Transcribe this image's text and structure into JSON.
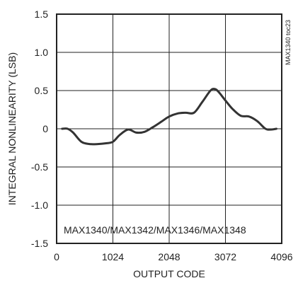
{
  "chart_data": {
    "type": "line",
    "xlabel": "OUTPUT CODE",
    "ylabel": "INTEGRAL NONLINEARITY (LSB)",
    "annotation": "MAX1340/MAX1342/MAX1346/MAX1348",
    "side_id": "MAX1340 toc23",
    "xlim": [
      0,
      4096
    ],
    "ylim": [
      -1.5,
      1.5
    ],
    "xticks": [
      {
        "value": 0,
        "label": "0"
      },
      {
        "value": 1024,
        "label": "1024"
      },
      {
        "value": 2048,
        "label": "2048"
      },
      {
        "value": 3072,
        "label": "3072"
      },
      {
        "value": 4096,
        "label": "4096"
      }
    ],
    "yticks": [
      {
        "value": 1.5,
        "label": "1.5"
      },
      {
        "value": 1.0,
        "label": "1.0"
      },
      {
        "value": 0.5,
        "label": "0.5"
      },
      {
        "value": 0,
        "label": "0"
      },
      {
        "value": -0.5,
        "label": "-0.5"
      },
      {
        "value": -1.0,
        "label": "-1.0"
      },
      {
        "value": -1.5,
        "label": "-1.5"
      }
    ],
    "grid": true,
    "series": [
      {
        "color": "#333333",
        "x": [
          100,
          200,
          300,
          450,
          600,
          750,
          900,
          1024,
          1150,
          1300,
          1450,
          1600,
          1750,
          1900,
          2048,
          2200,
          2350,
          2500,
          2650,
          2800,
          2880,
          2950,
          3072,
          3200,
          3350,
          3500,
          3650,
          3800,
          3900,
          4000
        ],
        "y": [
          0.0,
          0.0,
          -0.05,
          -0.17,
          -0.2,
          -0.2,
          -0.19,
          -0.17,
          -0.08,
          -0.01,
          -0.05,
          -0.04,
          0.02,
          0.09,
          0.16,
          0.2,
          0.21,
          0.21,
          0.35,
          0.5,
          0.52,
          0.48,
          0.37,
          0.26,
          0.17,
          0.16,
          0.1,
          0.0,
          -0.01,
          0.0
        ]
      }
    ]
  }
}
